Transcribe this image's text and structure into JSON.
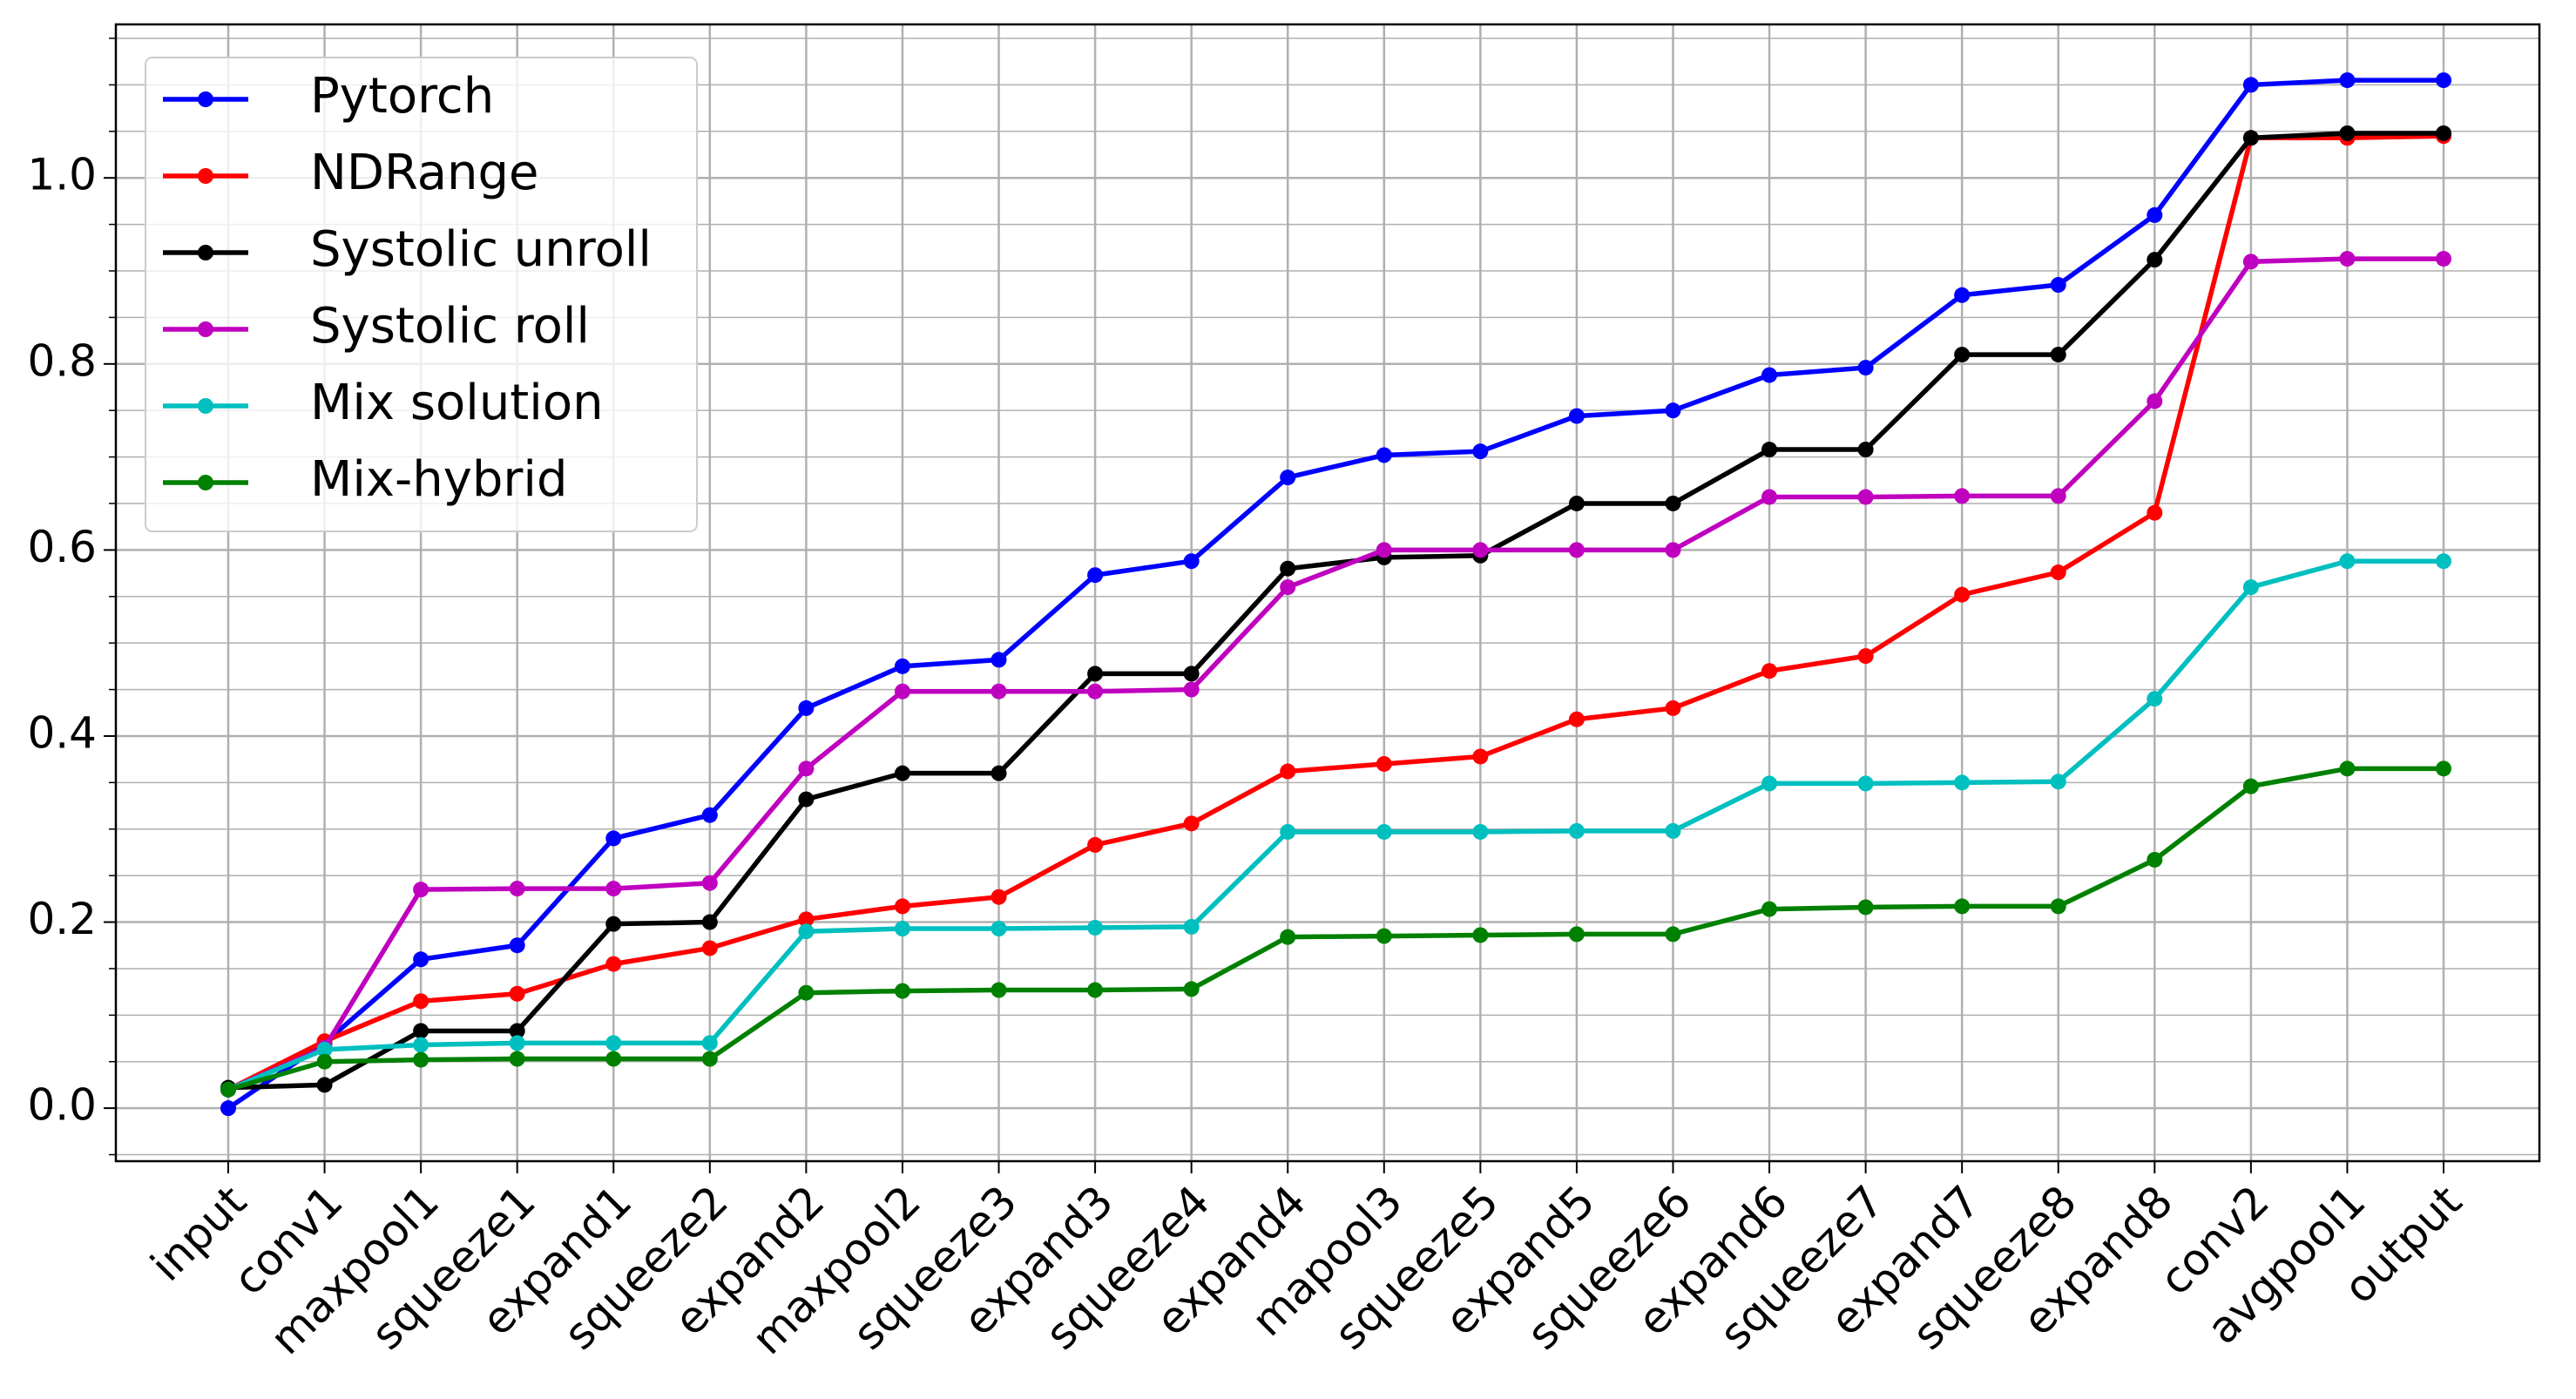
{
  "chart_data": {
    "type": "line",
    "categories": [
      "input",
      "conv1",
      "maxpool1",
      "squeeze1",
      "expand1",
      "squeeze2",
      "expand2",
      "maxpool2",
      "squeeze3",
      "expand3",
      "squeeze4",
      "expand4",
      "mapool3",
      "squeeze5",
      "expand5",
      "squeeze6",
      "expand6",
      "squeeze7",
      "expand7",
      "squeeze8",
      "expand8",
      "conv2",
      "avgpool1",
      "output"
    ],
    "series": [
      {
        "name": "Pytorch",
        "color": "#0000ff",
        "values": [
          0,
          0.07,
          0.16,
          0.175,
          0.29,
          0.315,
          0.43,
          0.475,
          0.482,
          0.573,
          0.588,
          0.678,
          0.702,
          0.706,
          0.744,
          0.75,
          0.788,
          0.796,
          0.874,
          0.885,
          0.96,
          1.1,
          1.105,
          1.105
        ]
      },
      {
        "name": "NDRange",
        "color": "#ff0000",
        "values": [
          0.02,
          0.072,
          0.115,
          0.123,
          0.155,
          0.172,
          0.203,
          0.217,
          0.227,
          0.283,
          0.306,
          0.362,
          0.37,
          0.378,
          0.418,
          0.43,
          0.47,
          0.486,
          0.552,
          0.576,
          0.64,
          1.043,
          1.043,
          1.045
        ]
      },
      {
        "name": "Systolic unroll",
        "color": "#000000",
        "values": [
          0.022,
          0.025,
          0.083,
          0.083,
          0.198,
          0.2,
          0.332,
          0.36,
          0.36,
          0.467,
          0.467,
          0.58,
          0.592,
          0.594,
          0.65,
          0.65,
          0.708,
          0.708,
          0.81,
          0.81,
          0.912,
          1.043,
          1.048,
          1.048
        ]
      },
      {
        "name": "Systolic roll",
        "color": "#bf00bf",
        "values": [
          0.02,
          0.065,
          0.235,
          0.236,
          0.236,
          0.242,
          0.365,
          0.448,
          0.448,
          0.448,
          0.45,
          0.56,
          0.6,
          0.6,
          0.6,
          0.6,
          0.657,
          0.657,
          0.658,
          0.658,
          0.76,
          0.91,
          0.913,
          0.913
        ]
      },
      {
        "name": "Mix solution",
        "color": "#00bfbf",
        "values": [
          0.02,
          0.063,
          0.068,
          0.07,
          0.07,
          0.07,
          0.19,
          0.193,
          0.193,
          0.194,
          0.195,
          0.297,
          0.297,
          0.297,
          0.298,
          0.298,
          0.349,
          0.349,
          0.35,
          0.351,
          0.44,
          0.56,
          0.588,
          0.588
        ]
      },
      {
        "name": "Mix-hybrid",
        "color": "#008000",
        "values": [
          0.02,
          0.05,
          0.052,
          0.053,
          0.053,
          0.053,
          0.124,
          0.126,
          0.127,
          0.127,
          0.128,
          0.184,
          0.185,
          0.186,
          0.187,
          0.187,
          0.214,
          0.216,
          0.217,
          0.217,
          0.267,
          0.346,
          0.365,
          0.365
        ]
      }
    ],
    "ylim": [
      -0.057,
      1.165
    ],
    "yticks": [
      {
        "value": 0,
        "label": "0.0"
      },
      0.2,
      0.4,
      0.6,
      0.8,
      {
        "value": 1,
        "label": "1.0"
      }
    ],
    "yminor_ticks": [
      -0.05,
      0.05,
      0.1,
      0.15,
      0.25,
      0.3,
      0.35,
      0.45,
      0.5,
      0.55,
      0.65,
      0.7,
      0.75,
      0.85,
      0.9,
      0.95,
      1.05,
      1.1,
      1.15
    ],
    "grid": true,
    "legend": "upper left"
  }
}
